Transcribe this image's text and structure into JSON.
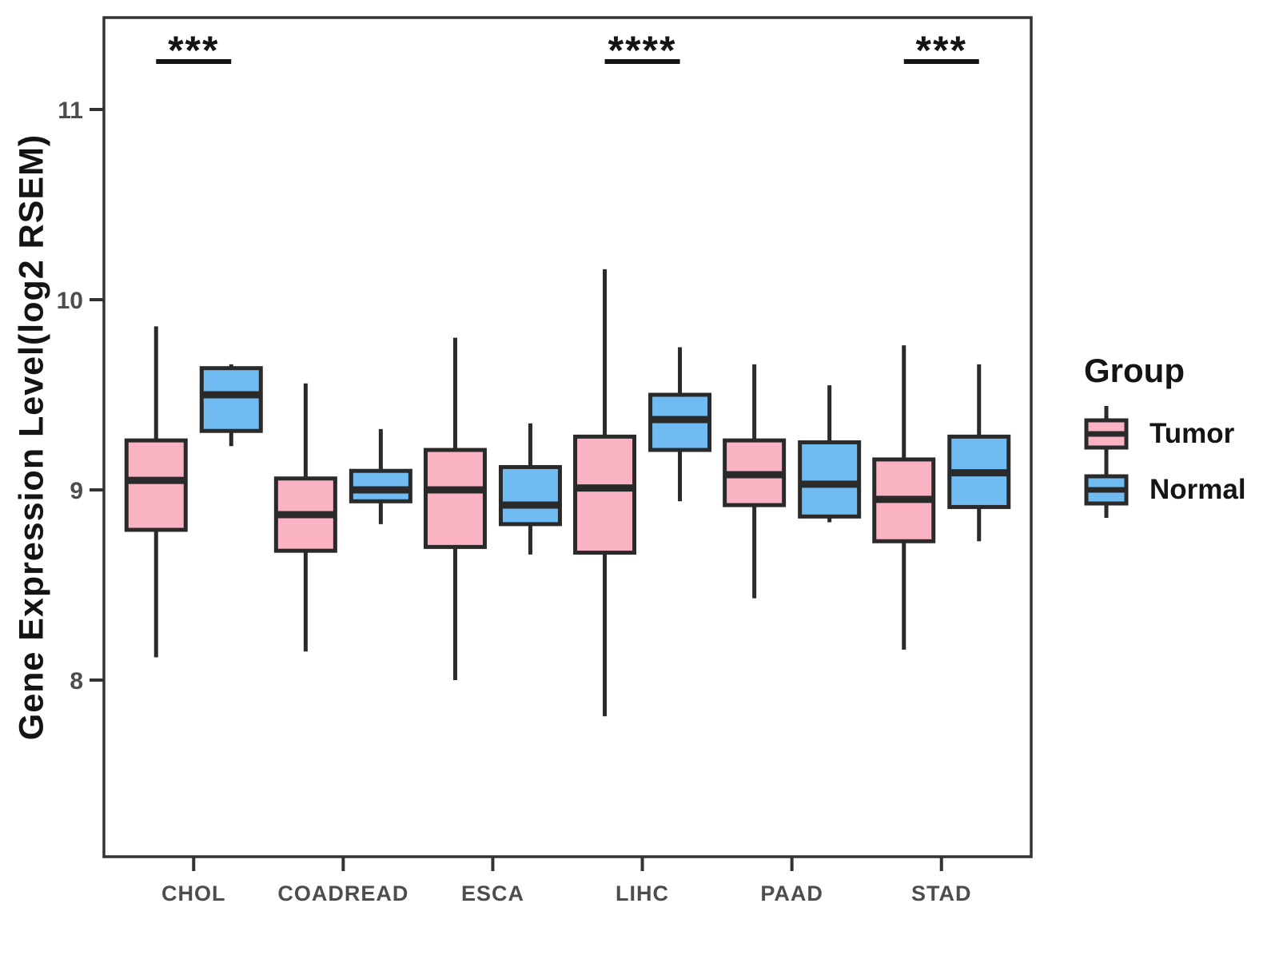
{
  "figure": {
    "y_axis": {
      "title": "Gene Expression Level(log2 RSEM)",
      "ticks": [
        "8",
        "9",
        "10",
        "11"
      ]
    },
    "x_axis": {
      "categories": [
        "CHOL",
        "COADREAD",
        "ESCA",
        "LIHC",
        "PAAD",
        "STAD"
      ]
    },
    "legend": {
      "title": "Group"
    }
  },
  "chart_data": {
    "type": "boxplot",
    "title": "",
    "xlabel": "",
    "ylabel": "Gene Expression Level(log2 RSEM)",
    "ylim": [
      7.05,
      11.48
    ],
    "y_ticks": [
      8,
      9,
      10,
      11
    ],
    "grid": false,
    "legend_position": "right",
    "categories": [
      "CHOL",
      "COADREAD",
      "ESCA",
      "LIHC",
      "PAAD",
      "STAD"
    ],
    "colors": {
      "line": "#2a2a2a",
      "panel_border": "#333333",
      "tick_text": "#4d4d4d",
      "black_text": "#141414"
    },
    "series": [
      {
        "name": "Tumor",
        "color": "#F9B3C2",
        "boxes": [
          {
            "category": "CHOL",
            "whisker_low": 8.12,
            "q1": 8.79,
            "median": 9.05,
            "q3": 9.26,
            "whisker_high": 9.86
          },
          {
            "category": "COADREAD",
            "whisker_low": 8.15,
            "q1": 8.68,
            "median": 8.87,
            "q3": 9.06,
            "whisker_high": 9.56
          },
          {
            "category": "ESCA",
            "whisker_low": 8.0,
            "q1": 8.7,
            "median": 9.0,
            "q3": 9.21,
            "whisker_high": 9.8
          },
          {
            "category": "LIHC",
            "whisker_low": 7.81,
            "q1": 8.67,
            "median": 9.01,
            "q3": 9.28,
            "whisker_high": 10.16
          },
          {
            "category": "PAAD",
            "whisker_low": 8.43,
            "q1": 8.92,
            "median": 9.08,
            "q3": 9.26,
            "whisker_high": 9.66
          },
          {
            "category": "STAD",
            "whisker_low": 8.16,
            "q1": 8.73,
            "median": 8.95,
            "q3": 9.16,
            "whisker_high": 9.76
          }
        ]
      },
      {
        "name": "Normal",
        "color": "#70BCF2",
        "boxes": [
          {
            "category": "CHOL",
            "whisker_low": 9.23,
            "q1": 9.31,
            "median": 9.5,
            "q3": 9.64,
            "whisker_high": 9.66
          },
          {
            "category": "COADREAD",
            "whisker_low": 8.82,
            "q1": 8.94,
            "median": 9.0,
            "q3": 9.1,
            "whisker_high": 9.32
          },
          {
            "category": "ESCA",
            "whisker_low": 8.66,
            "q1": 8.82,
            "median": 8.92,
            "q3": 9.12,
            "whisker_high": 9.35
          },
          {
            "category": "LIHC",
            "whisker_low": 8.94,
            "q1": 9.21,
            "median": 9.37,
            "q3": 9.5,
            "whisker_high": 9.75
          },
          {
            "category": "PAAD",
            "whisker_low": 8.83,
            "q1": 8.86,
            "median": 9.03,
            "q3": 9.25,
            "whisker_high": 9.55
          },
          {
            "category": "STAD",
            "whisker_low": 8.73,
            "q1": 8.91,
            "median": 9.09,
            "q3": 9.28,
            "whisker_high": 9.66
          }
        ]
      }
    ],
    "significance": [
      {
        "category": "CHOL",
        "label": "***"
      },
      {
        "category": "LIHC",
        "label": "****"
      },
      {
        "category": "STAD",
        "label": "***"
      }
    ]
  }
}
